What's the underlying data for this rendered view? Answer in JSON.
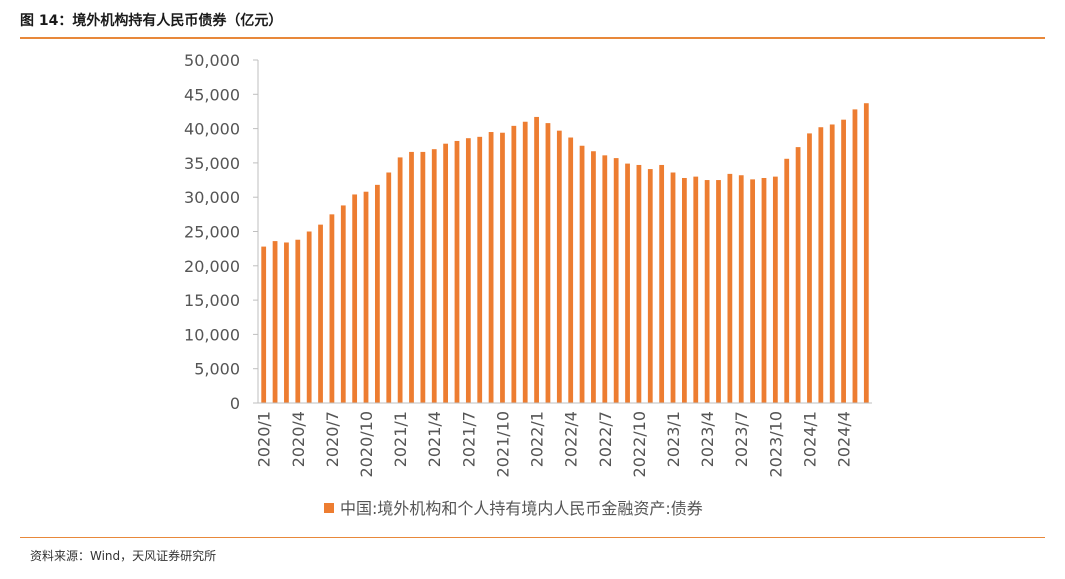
{
  "header": {
    "title": "图 14：境外机构持有人民币债券（亿元）"
  },
  "footer": {
    "source": "资料来源：Wind，天风证券研究所"
  },
  "colors": {
    "accent": "#E8883A",
    "bar": "#ED7D31",
    "axis": "#BFBFBF"
  },
  "chart_data": {
    "type": "bar",
    "title": "",
    "xlabel": "",
    "ylabel": "",
    "ylim": [
      0,
      50000
    ],
    "yticks": [
      "0",
      "5,000",
      "10,000",
      "15,000",
      "20,000",
      "25,000",
      "30,000",
      "35,000",
      "40,000",
      "45,000",
      "50,000"
    ],
    "legend": {
      "position": "bottom",
      "label": "中国:境外机构和个人持有境内人民币金融资产:债券"
    },
    "grid": false,
    "series": [
      {
        "name": "中国:境外机构和个人持有境内人民币金融资产:债券",
        "values": [
          22800,
          23600,
          23400,
          23800,
          25000,
          26000,
          27500,
          28800,
          30400,
          30800,
          31800,
          33600,
          35800,
          36600,
          36600,
          37000,
          37800,
          38200,
          38600,
          38800,
          39500,
          39400,
          40400,
          41000,
          41700,
          40800,
          39700,
          38700,
          37500,
          36700,
          36100,
          35700,
          34900,
          34700,
          34100,
          34700,
          33600,
          32800,
          33000,
          32500,
          32500,
          33400,
          33200,
          32600,
          32800,
          33000,
          35600,
          37300,
          39300,
          40200,
          40600,
          41300,
          42800,
          43700
        ]
      }
    ],
    "categories": [
      "2020/1",
      "2020/2",
      "2020/3",
      "2020/4",
      "2020/5",
      "2020/6",
      "2020/7",
      "2020/8",
      "2020/9",
      "2020/10",
      "2020/11",
      "2020/12",
      "2021/1",
      "2021/2",
      "2021/3",
      "2021/4",
      "2021/5",
      "2021/6",
      "2021/7",
      "2021/8",
      "2021/9",
      "2021/10",
      "2021/11",
      "2021/12",
      "2022/1",
      "2022/2",
      "2022/3",
      "2022/4",
      "2022/5",
      "2022/6",
      "2022/7",
      "2022/8",
      "2022/9",
      "2022/10",
      "2022/11",
      "2022/12",
      "2023/1",
      "2023/2",
      "2023/3",
      "2023/4",
      "2023/5",
      "2023/6",
      "2023/7",
      "2023/8",
      "2023/9",
      "2023/10",
      "2023/11",
      "2023/12",
      "2024/1",
      "2024/2",
      "2024/3",
      "2024/4",
      "2024/5",
      "2024/6"
    ],
    "visible_xtick_labels": [
      "2020/1",
      "2020/4",
      "2020/7",
      "2020/10",
      "2021/1",
      "2021/4",
      "2021/7",
      "2021/10",
      "2022/1",
      "2022/4",
      "2022/7",
      "2022/10",
      "2023/1",
      "2023/4",
      "2023/7",
      "2023/10",
      "2024/1",
      "2024/4"
    ]
  }
}
